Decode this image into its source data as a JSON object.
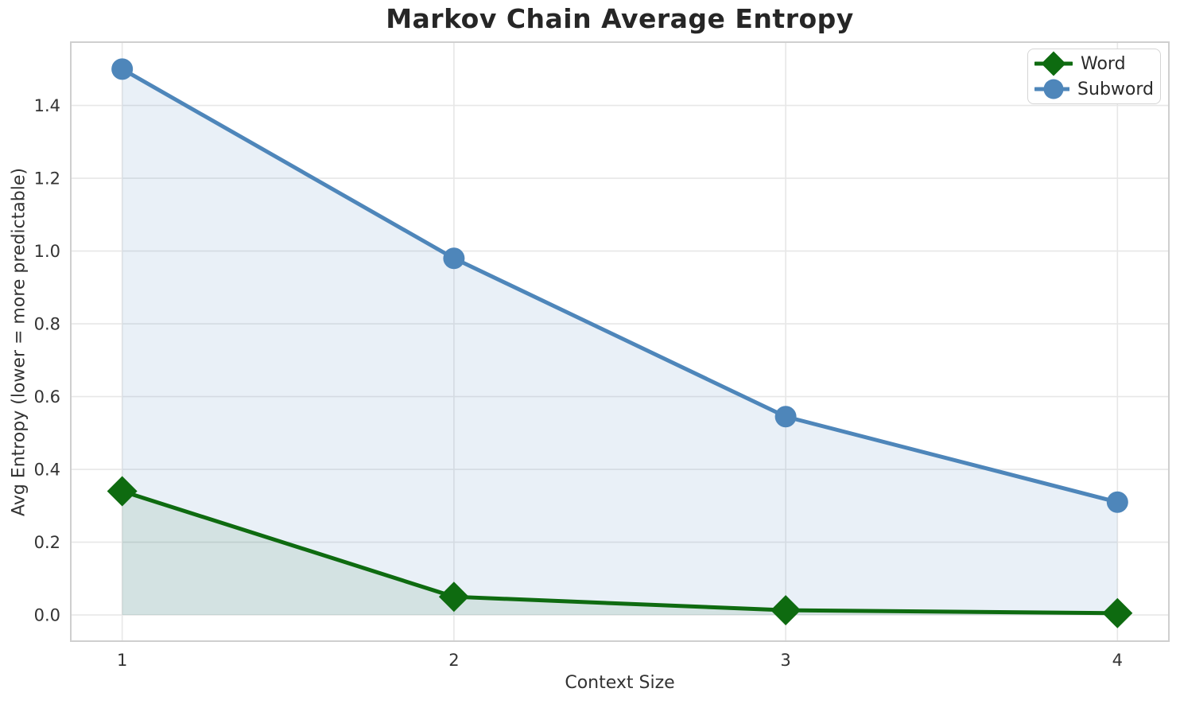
{
  "chart_data": {
    "type": "line",
    "title": "Markov Chain Average Entropy",
    "xlabel": "Context Size",
    "ylabel": "Avg Entropy (lower = more predictable)",
    "x": [
      1,
      2,
      3,
      4
    ],
    "series": [
      {
        "name": "Word",
        "values": [
          0.34,
          0.05,
          0.013,
          0.005
        ],
        "color": "#0e6b10",
        "marker": "diamond",
        "fill_opacity": 0.1
      },
      {
        "name": "Subword",
        "values": [
          1.5,
          0.98,
          0.545,
          0.31
        ],
        "color": "#4e86ba",
        "marker": "circle",
        "fill_opacity": 0.12
      }
    ],
    "fill_to_zero": true,
    "xlim": [
      0.845,
      4.155
    ],
    "ylim": [
      -0.072,
      1.574
    ],
    "xticks": [
      1,
      2,
      3,
      4
    ],
    "xtick_labels": [
      "1",
      "2",
      "3",
      "4"
    ],
    "yticks": [
      0.0,
      0.2,
      0.4,
      0.6,
      0.8,
      1.0,
      1.2,
      1.4
    ],
    "ytick_labels": [
      "0.0",
      "0.2",
      "0.4",
      "0.6",
      "0.8",
      "1.0",
      "1.2",
      "1.4"
    ],
    "grid": true,
    "legend_position": "upper right",
    "colors": {
      "grid": "#e7e7e7",
      "frame": "#cfcfcf",
      "tick_text": "#333333",
      "title_text": "#262626"
    }
  }
}
